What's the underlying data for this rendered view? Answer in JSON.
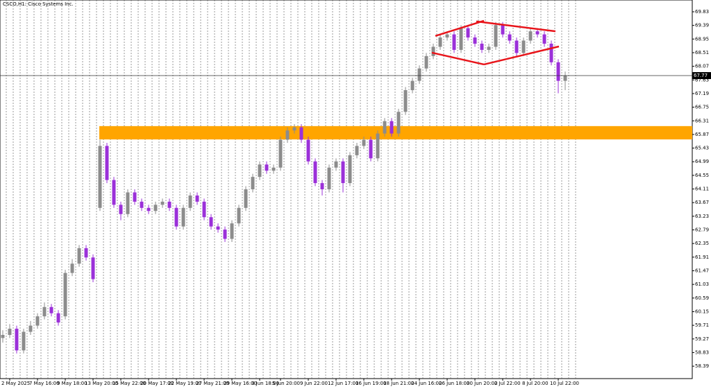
{
  "chart_data": {
    "type": "candlestick",
    "title": "CSCO,H1: Cisco Systems Inc.",
    "open": [
      59.3,
      59.4,
      59.6,
      58.9,
      59.5,
      59.7,
      60.0,
      60.3,
      60.1,
      60.0,
      61.4,
      61.7,
      62.2,
      61.9,
      63.5,
      65.5,
      64.4,
      63.6,
      63.3,
      64.0,
      63.7,
      63.5,
      63.4,
      63.6,
      63.7,
      63.5,
      62.9,
      63.5,
      63.9,
      63.7,
      63.2,
      62.9,
      62.8,
      62.5,
      63.0,
      63.5,
      64.1,
      64.5,
      64.9,
      64.7,
      64.8,
      65.7,
      66.0,
      66.1,
      65.7,
      65.0,
      64.3,
      64.1,
      64.8,
      65.0,
      64.3,
      65.2,
      65.5,
      65.7,
      65.1,
      65.9,
      66.3,
      65.9,
      66.6,
      67.3,
      67.6,
      68.0,
      68.4,
      68.7,
      69.0,
      69.1,
      68.6,
      69.3,
      69.0,
      68.8,
      68.6,
      68.7,
      69.4,
      69.1,
      68.9,
      68.5,
      68.9,
      69.2,
      69.1,
      68.8,
      68.2,
      67.6
    ],
    "high": [
      59.55,
      59.75,
      59.7,
      59.6,
      59.85,
      60.1,
      60.45,
      60.4,
      60.2,
      61.5,
      61.85,
      62.3,
      62.3,
      62.0,
      65.7,
      65.6,
      64.5,
      63.7,
      64.1,
      64.1,
      63.8,
      63.6,
      63.7,
      63.8,
      63.8,
      63.6,
      63.6,
      64.0,
      64.0,
      63.8,
      63.3,
      63.0,
      62.9,
      63.1,
      63.6,
      64.2,
      64.6,
      65.0,
      65.0,
      64.9,
      65.8,
      66.1,
      66.2,
      66.2,
      65.8,
      65.1,
      64.4,
      64.9,
      65.1,
      65.1,
      65.3,
      65.6,
      65.8,
      65.8,
      66.0,
      66.4,
      66.4,
      66.7,
      67.4,
      67.7,
      68.1,
      68.5,
      68.8,
      69.1,
      69.2,
      69.2,
      69.4,
      69.4,
      69.1,
      68.9,
      68.8,
      69.5,
      69.5,
      69.2,
      69.0,
      69.0,
      69.3,
      69.3,
      69.2,
      68.9,
      68.3,
      67.9
    ],
    "low": [
      59.15,
      59.3,
      58.8,
      58.8,
      59.4,
      59.6,
      59.9,
      60.0,
      59.7,
      59.9,
      61.3,
      61.6,
      61.8,
      61.1,
      63.4,
      64.3,
      63.5,
      63.1,
      63.2,
      63.6,
      63.4,
      63.3,
      63.3,
      63.5,
      63.4,
      62.8,
      62.8,
      63.4,
      63.6,
      63.1,
      62.8,
      62.7,
      62.4,
      62.4,
      62.9,
      63.4,
      64.0,
      64.4,
      64.6,
      64.6,
      64.7,
      65.6,
      65.9,
      65.6,
      64.9,
      64.2,
      63.9,
      64.0,
      64.7,
      64.0,
      64.2,
      65.1,
      65.4,
      65.0,
      65.0,
      65.8,
      65.8,
      65.8,
      66.5,
      67.2,
      67.5,
      67.9,
      68.3,
      68.6,
      68.9,
      68.5,
      68.5,
      68.9,
      68.7,
      68.5,
      68.5,
      68.6,
      69.0,
      68.8,
      68.4,
      68.4,
      68.8,
      69.0,
      68.7,
      68.1,
      67.2,
      67.3
    ],
    "close": [
      59.4,
      59.6,
      58.9,
      59.5,
      59.7,
      60.0,
      60.3,
      60.1,
      59.8,
      61.4,
      61.7,
      62.2,
      61.9,
      61.2,
      65.5,
      64.4,
      63.6,
      63.3,
      64.0,
      63.7,
      63.5,
      63.4,
      63.6,
      63.7,
      63.5,
      62.9,
      63.5,
      63.9,
      63.7,
      63.2,
      62.9,
      62.8,
      62.5,
      63.0,
      63.5,
      64.1,
      64.5,
      64.9,
      64.7,
      64.8,
      65.7,
      66.0,
      66.1,
      65.7,
      65.0,
      64.3,
      64.1,
      64.8,
      65.0,
      64.3,
      65.2,
      65.5,
      65.7,
      65.1,
      65.9,
      66.3,
      65.9,
      66.6,
      67.3,
      67.6,
      68.0,
      68.4,
      68.7,
      69.0,
      69.1,
      68.6,
      69.3,
      69.0,
      68.8,
      68.6,
      68.7,
      69.4,
      69.1,
      68.9,
      68.5,
      68.9,
      69.2,
      69.1,
      68.8,
      68.2,
      67.6,
      67.77
    ],
    "up_color": "#8c8c8c",
    "down_color": "#9b30d9",
    "ylim": [
      57.99,
      70.21
    ],
    "yticks": [
      69.83,
      69.39,
      68.95,
      68.51,
      68.07,
      67.63,
      67.19,
      66.75,
      66.31,
      65.87,
      65.43,
      64.99,
      64.55,
      64.11,
      63.67,
      63.23,
      62.79,
      62.35,
      61.91,
      61.47,
      61.03,
      60.59,
      60.15,
      59.71,
      59.27,
      58.83,
      58.39
    ],
    "xticks": [
      {
        "value": 1,
        "label": "2 May 2025"
      },
      {
        "value": 5,
        "label": "7 May 16:00"
      },
      {
        "value": 9,
        "label": "9 May 18:00"
      },
      {
        "value": 13,
        "label": "13 May 20:00"
      },
      {
        "value": 17,
        "label": "15 May 22:00"
      },
      {
        "value": 21,
        "label": "20 May 17:00"
      },
      {
        "value": 25,
        "label": "22 May 19:00"
      },
      {
        "value": 29,
        "label": "27 May 21:00"
      },
      {
        "value": 33,
        "label": "29 May 16:00"
      },
      {
        "value": 37,
        "label": "3 Jun 18:00"
      },
      {
        "value": 40,
        "label": "5 Jun 20:00"
      },
      {
        "value": 44,
        "label": "9 Jun 22:00"
      },
      {
        "value": 48,
        "label": "12 Jun 17:00"
      },
      {
        "value": 52,
        "label": "16 Jun 19:00"
      },
      {
        "value": 56,
        "label": "18 Jun 21:00"
      },
      {
        "value": 60,
        "label": "24 Jun 16:00"
      },
      {
        "value": 64,
        "label": "26 Jun 18:00"
      },
      {
        "value": 68,
        "label": "30 Jun 20:00"
      },
      {
        "value": 72,
        "label": "2 Jul 22:00"
      },
      {
        "value": 76,
        "label": "8 Jul 20:00"
      },
      {
        "value": 80,
        "label": "10 Jul 22:00"
      }
    ],
    "zones": [
      {
        "from": 65.71,
        "to": 66.14,
        "x_start": 14,
        "color": "#ffa500"
      }
    ],
    "trendlines": [
      {
        "color": "#e8141a",
        "points": [
          [
            62.3,
            69.05
          ],
          [
            69.3,
            69.54
          ]
        ]
      },
      {
        "color": "#e8141a",
        "points": [
          [
            68.2,
            69.52
          ],
          [
            79.6,
            69.2
          ]
        ]
      },
      {
        "color": "#e8141a",
        "points": [
          [
            61.8,
            68.51
          ],
          [
            69.3,
            68.13
          ]
        ]
      },
      {
        "color": "#e8141a",
        "points": [
          [
            69.3,
            68.13
          ],
          [
            80.1,
            68.71
          ]
        ]
      }
    ]
  }
}
